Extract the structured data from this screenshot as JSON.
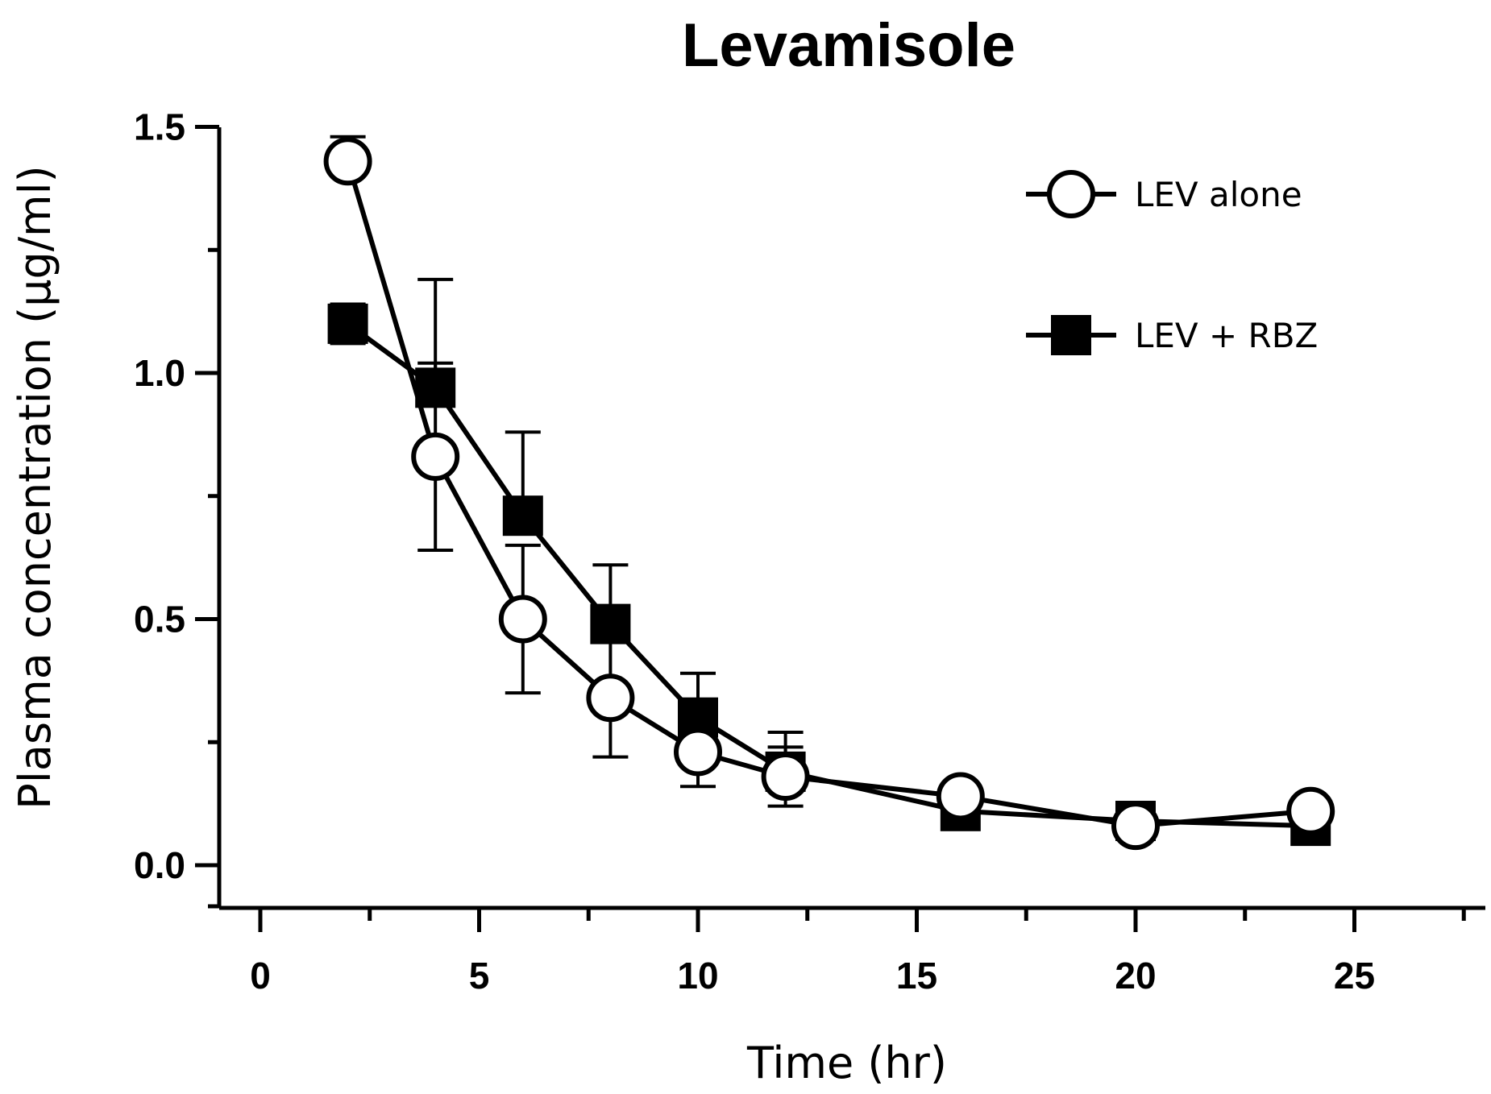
{
  "chart_data": {
    "type": "line",
    "title": "Levamisole",
    "xlabel": "Time (hr)",
    "ylabel": "Plasma concentration (μg/ml)",
    "xlim": [
      -1,
      28
    ],
    "ylim": [
      -0.1,
      1.5
    ],
    "xticks": [
      0,
      5,
      10,
      15,
      20,
      25
    ],
    "xtick_labels": [
      "0",
      "5",
      "10",
      "15",
      "20",
      "25"
    ],
    "yticks": [
      0.0,
      0.5,
      1.0,
      1.5
    ],
    "ytick_labels": [
      "0.0",
      "0.5",
      "1.0",
      "1.5"
    ],
    "grid": false,
    "legend_position": "top-right",
    "x": [
      2,
      4,
      6,
      8,
      10,
      12,
      16,
      20,
      24
    ],
    "series": [
      {
        "name": "LEV alone",
        "marker": "open-circle",
        "color": "#000000",
        "values": [
          1.43,
          0.83,
          0.5,
          0.34,
          0.23,
          0.18,
          0.14,
          0.08,
          0.11
        ],
        "error": [
          0.05,
          0.19,
          0.15,
          0.12,
          0.07,
          0.06,
          0.02,
          0.01,
          0.01
        ]
      },
      {
        "name": "LEV + RBZ",
        "marker": "filled-square",
        "color": "#000000",
        "values": [
          1.1,
          0.97,
          0.71,
          0.49,
          0.3,
          0.19,
          0.11,
          0.09,
          0.08
        ],
        "error": [
          0.04,
          0.22,
          0.17,
          0.12,
          0.09,
          0.08,
          0.02,
          0.01,
          0.01
        ]
      }
    ]
  }
}
